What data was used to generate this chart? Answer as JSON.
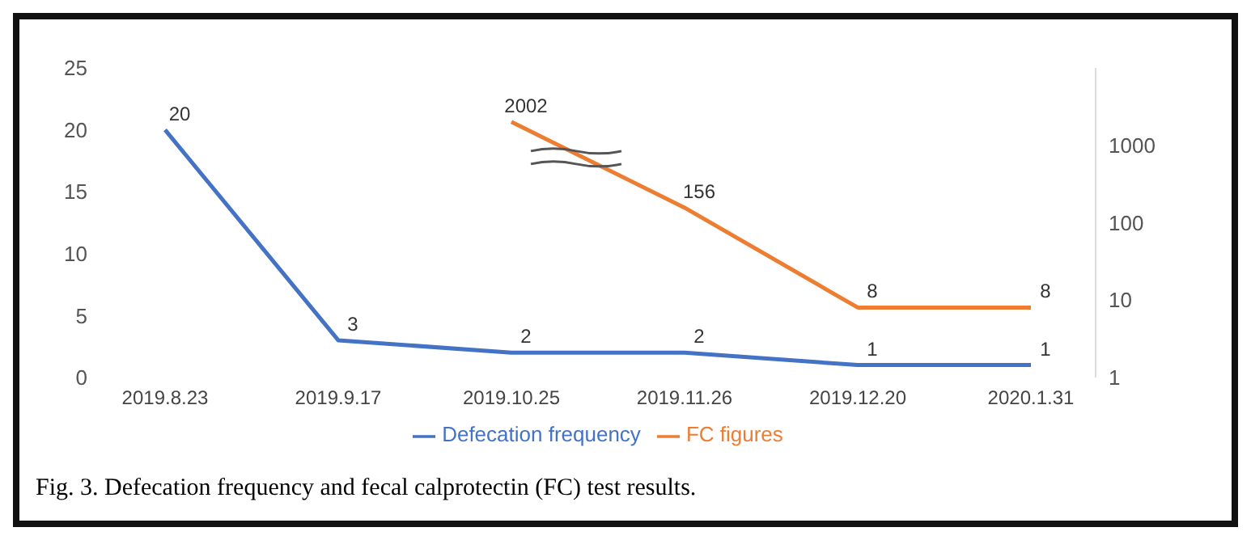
{
  "chart_data": {
    "type": "line",
    "categories": [
      "2019.8.23",
      "2019.9.17",
      "2019.10.25",
      "2019.11.26",
      "2019.12.20",
      "2020.1.31"
    ],
    "series": [
      {
        "name": "Defecation frequency",
        "color": "#4472c4",
        "values": [
          20,
          3,
          2,
          2,
          1,
          1
        ]
      },
      {
        "name": "FC figures",
        "color": "#ed7d31",
        "axis": "y2",
        "values": [
          null,
          null,
          2002,
          156,
          8,
          8
        ]
      }
    ],
    "ylim": [
      0,
      25
    ],
    "yticks": [
      0,
      5,
      10,
      15,
      20,
      25
    ],
    "y2lim": [
      1,
      10000
    ],
    "y2ticks": [
      1,
      10,
      100,
      1000
    ],
    "log": "y2",
    "data_labels": true,
    "legend": "bottom",
    "marker": "none",
    "line_style": "solid",
    "grid": false,
    "annotations": [
      "Fig. 3. Defecation frequency and fecal calprotectin (FC) test results."
    ]
  }
}
